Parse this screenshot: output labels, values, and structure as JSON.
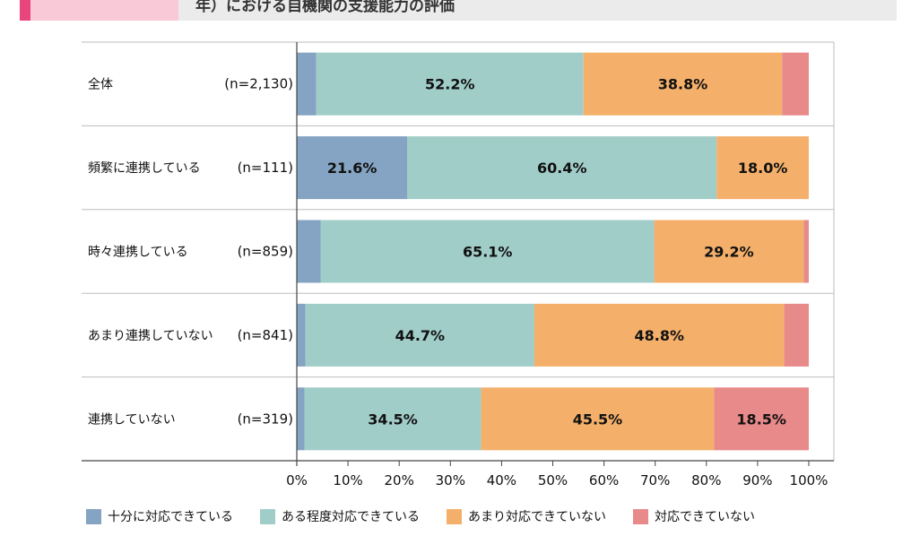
{
  "header": {
    "title": "年）における自機関の支援能力の評価"
  },
  "chart_data": {
    "type": "bar",
    "orientation": "horizontal",
    "stacked": true,
    "categories": [
      "全体",
      "頻繁に連携している",
      "時々連携している",
      "あまり連携していない",
      "連携していない"
    ],
    "n_labels": [
      "(n=2,130)",
      "(n=111)",
      "(n=859)",
      "(n=841)",
      "(n=319)"
    ],
    "series": [
      {
        "name": "十分に対応できている",
        "color": "#85a3c2",
        "values": [
          3.8,
          21.6,
          4.7,
          1.7,
          1.5
        ],
        "labels": [
          "",
          "21.6%",
          "",
          "",
          ""
        ]
      },
      {
        "name": "ある程度対応できている",
        "color": "#a1cdc9",
        "values": [
          52.2,
          60.4,
          65.1,
          44.7,
          34.5
        ],
        "labels": [
          "52.2%",
          "60.4%",
          "65.1%",
          "44.7%",
          "34.5%"
        ]
      },
      {
        "name": "あまり対応できていない",
        "color": "#f4b06b",
        "values": [
          38.8,
          18.0,
          29.2,
          48.8,
          45.5
        ],
        "labels": [
          "38.8%",
          "18.0%",
          "29.2%",
          "48.8%",
          "45.5%"
        ]
      },
      {
        "name": "対応できていない",
        "color": "#e8898a",
        "values": [
          5.2,
          0.0,
          1.0,
          4.8,
          18.5
        ],
        "labels": [
          "",
          "",
          "",
          "",
          "18.5%"
        ]
      }
    ],
    "x_ticks": [
      "0%",
      "10%",
      "20%",
      "30%",
      "40%",
      "50%",
      "60%",
      "70%",
      "80%",
      "90%",
      "100%"
    ],
    "xlim": [
      0,
      100
    ],
    "legend_position": "bottom"
  }
}
